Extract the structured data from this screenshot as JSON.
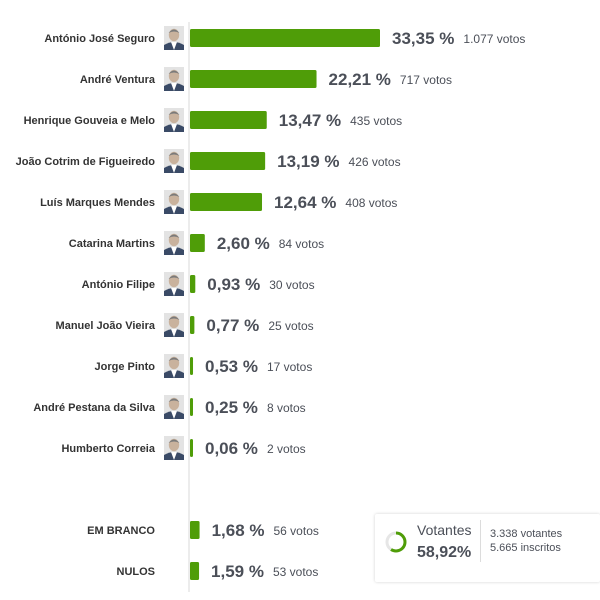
{
  "chart_data": {
    "type": "bar",
    "orientation": "horizontal",
    "bar_color": "#4f9d08",
    "candidates": [
      {
        "name": "António José Seguro",
        "pct_label": "33,35 %",
        "votes_label": "1.077 votos",
        "value": 33.35,
        "votes": 1077
      },
      {
        "name": "André Ventura",
        "pct_label": "22,21 %",
        "votes_label": "717 votos",
        "value": 22.21,
        "votes": 717
      },
      {
        "name": "Henrique Gouveia e Melo",
        "pct_label": "13,47 %",
        "votes_label": "435 votos",
        "value": 13.47,
        "votes": 435
      },
      {
        "name": "João Cotrim de Figueiredo",
        "pct_label": "13,19 %",
        "votes_label": "426 votos",
        "value": 13.19,
        "votes": 426
      },
      {
        "name": "Luís Marques Mendes",
        "pct_label": "12,64 %",
        "votes_label": "408 votos",
        "value": 12.64,
        "votes": 408
      },
      {
        "name": "Catarina Martins",
        "pct_label": "2,60 %",
        "votes_label": "84 votos",
        "value": 2.6,
        "votes": 84
      },
      {
        "name": "António Filipe",
        "pct_label": "0,93 %",
        "votes_label": "30 votos",
        "value": 0.93,
        "votes": 30
      },
      {
        "name": "Manuel João Vieira",
        "pct_label": "0,77 %",
        "votes_label": "25 votos",
        "value": 0.77,
        "votes": 25
      },
      {
        "name": "Jorge Pinto",
        "pct_label": "0,53 %",
        "votes_label": "17 votos",
        "value": 0.53,
        "votes": 17
      },
      {
        "name": "André Pestana da Silva",
        "pct_label": "0,25 %",
        "votes_label": "8 votos",
        "value": 0.25,
        "votes": 8
      },
      {
        "name": "Humberto Correia",
        "pct_label": "0,06 %",
        "votes_label": "2 votos",
        "value": 0.06,
        "votes": 2
      }
    ],
    "other": [
      {
        "name": "EM BRANCO",
        "pct_label": "1,68 %",
        "votes_label": "56 votos",
        "value": 1.68,
        "votes": 56
      },
      {
        "name": "NULOS",
        "pct_label": "1,59 %",
        "votes_label": "53 votos",
        "value": 1.59,
        "votes": 53
      }
    ]
  },
  "turnout": {
    "label": "Votantes",
    "pct_label": "58,92%",
    "value": 58.92,
    "voters_label": "3.338 votantes",
    "registered_label": "5.665 inscritos",
    "ring_color": "#4f9d08"
  }
}
